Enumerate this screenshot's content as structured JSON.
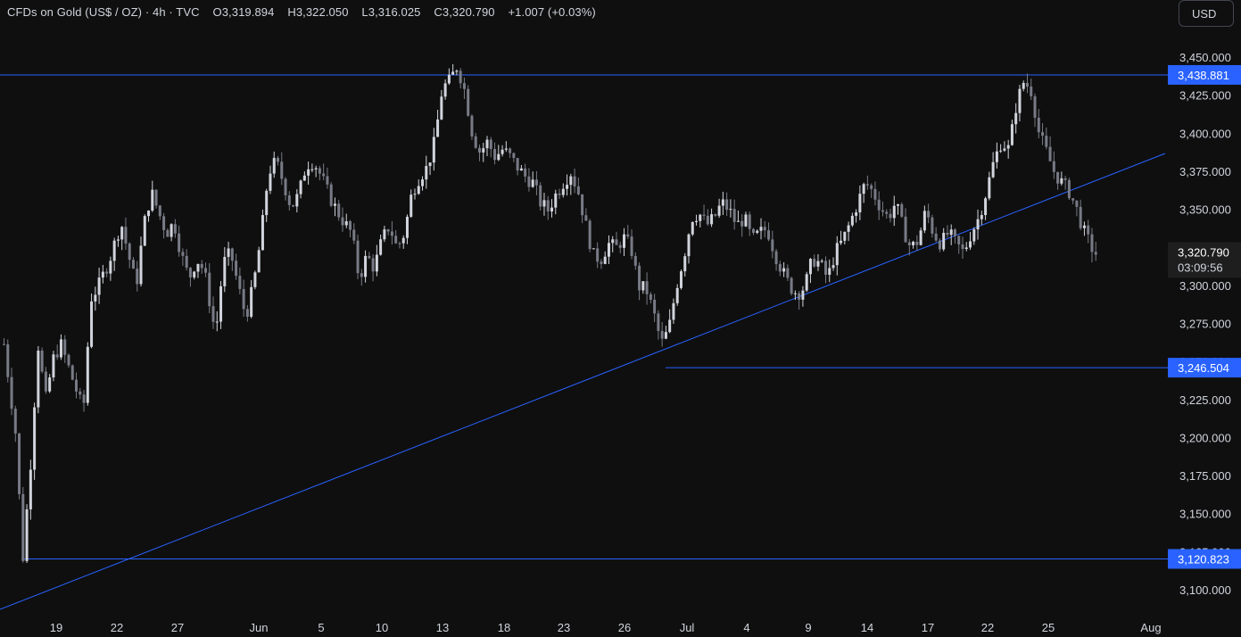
{
  "header": {
    "symbol": "CFDs on Gold (US$ / OZ)",
    "interval": "4h",
    "source": "TVC",
    "open_label": "O",
    "open": "3,319.894",
    "high_label": "H",
    "high": "3,322.050",
    "low_label": "L",
    "low": "3,316.025",
    "close_label": "C",
    "close": "3,320.790",
    "change": "+1.007 (+0.03%)",
    "separator": "·"
  },
  "currency_button": {
    "label": "USD"
  },
  "colors": {
    "background": "#0f0f0f",
    "candle_up": "#d1d4dc",
    "candle_down": "#787b86",
    "line": "#2962ff",
    "tag_bg": "#2962ff",
    "axis_text": "#d1d4dc",
    "price_tag_bg": "#1e1e1e"
  },
  "chart_data": {
    "type": "candlestick",
    "y_axis": {
      "range": [
        3087,
        3465
      ],
      "ticks": [
        "3,100.000",
        "3,125.000",
        "3,150.000",
        "3,175.000",
        "3,200.000",
        "3,225.000",
        "3,250.000",
        "3,275.000",
        "3,300.000",
        "3,325.000",
        "3,350.000",
        "3,375.000",
        "3,400.000",
        "3,425.000",
        "3,450.000"
      ],
      "tick_values": [
        3100,
        3125,
        3150,
        3175,
        3200,
        3225,
        3250,
        3275,
        3300,
        3325,
        3350,
        3375,
        3400,
        3425,
        3450
      ]
    },
    "x_axis": {
      "labels": [
        "19",
        "22",
        "27",
        "Jun",
        "5",
        "10",
        "13",
        "18",
        "23",
        "26",
        "Jul",
        "4",
        "9",
        "14",
        "17",
        "22",
        "25",
        "Aug"
      ],
      "label_bar_index": [
        10,
        26,
        42,
        58,
        74,
        90,
        106,
        122,
        138,
        154,
        170,
        186,
        202,
        218,
        234,
        250,
        266,
        282
      ],
      "bar_range": [
        0,
        290
      ]
    },
    "horizontal_levels": [
      {
        "value": 3438.881,
        "label": "3,438.881",
        "start_bar": 0
      },
      {
        "value": 3246.504,
        "label": "3,246.504",
        "start_bar": 153
      },
      {
        "value": 3120.823,
        "label": "3,120.823",
        "start_bar": 4
      }
    ],
    "trendline": {
      "from_bar": 0,
      "from_value": 3087,
      "to_bar": 290,
      "to_value": 3389
    },
    "last_price": {
      "value": 3320.79,
      "label": "3,320.790",
      "countdown": "03:09:56"
    },
    "candles": []
  }
}
